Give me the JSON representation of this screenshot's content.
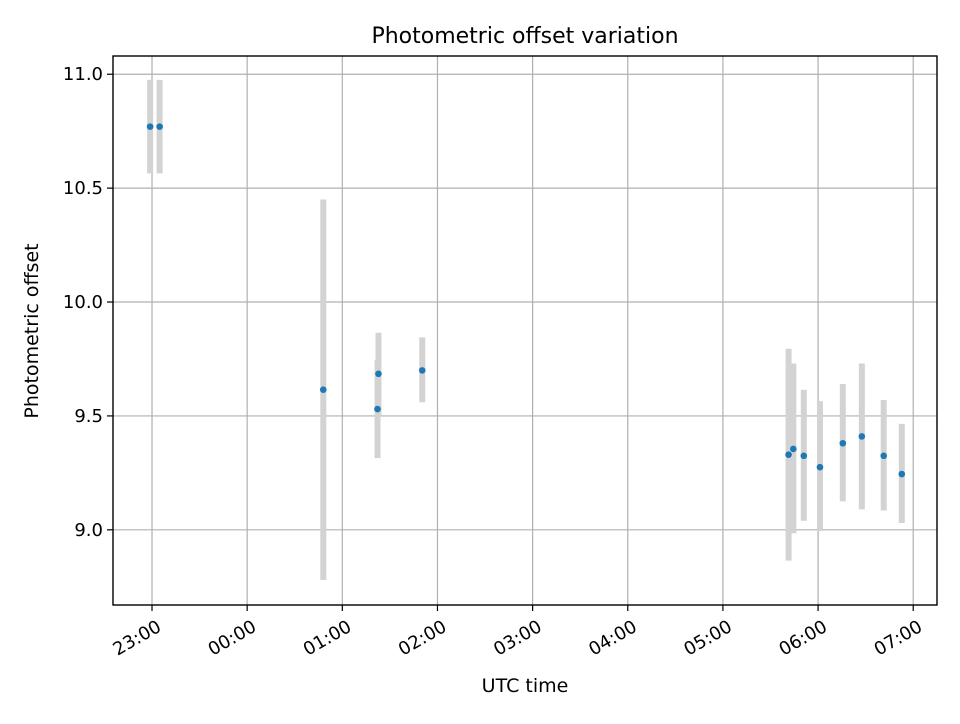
{
  "chart_data": {
    "type": "scatter",
    "title": "Photometric offset variation",
    "xlabel": "UTC time",
    "ylabel": "Photometric offset",
    "x_tick_labels": [
      "23:00",
      "00:00",
      "01:00",
      "02:00",
      "03:00",
      "04:00",
      "05:00",
      "06:00",
      "07:00"
    ],
    "x_tick_values": [
      23.0,
      24.0,
      25.0,
      26.0,
      27.0,
      28.0,
      29.0,
      30.0,
      31.0
    ],
    "xlim": [
      22.59,
      31.25
    ],
    "y_ticks": [
      9.0,
      9.5,
      10.0,
      10.5,
      11.0
    ],
    "y_tick_labels": [
      "9.0",
      "9.5",
      "10.0",
      "10.5",
      "11.0"
    ],
    "ylim": [
      8.67,
      11.08
    ],
    "grid": true,
    "colors": {
      "point": "#1f77b4",
      "errorbar": "#d3d3d3",
      "grid": "#b0b0b0",
      "axes": "#000000"
    },
    "series": [
      {
        "points": [
          {
            "x": 22.98,
            "y": 10.77,
            "ylow": 10.565,
            "yhigh": 10.975
          },
          {
            "x": 23.08,
            "y": 10.77,
            "ylow": 10.565,
            "yhigh": 10.975
          },
          {
            "x": 24.8,
            "y": 9.615,
            "ylow": 8.78,
            "yhigh": 10.45
          },
          {
            "x": 25.38,
            "y": 9.685,
            "ylow": 9.505,
            "yhigh": 9.865
          },
          {
            "x": 25.37,
            "y": 9.53,
            "ylow": 9.315,
            "yhigh": 9.745
          },
          {
            "x": 25.84,
            "y": 9.7,
            "ylow": 9.56,
            "yhigh": 9.845
          },
          {
            "x": 29.69,
            "y": 9.33,
            "ylow": 8.865,
            "yhigh": 9.795
          },
          {
            "x": 29.74,
            "y": 9.355,
            "ylow": 8.985,
            "yhigh": 9.73
          },
          {
            "x": 29.85,
            "y": 9.325,
            "ylow": 9.04,
            "yhigh": 9.615
          },
          {
            "x": 30.02,
            "y": 9.275,
            "ylow": 8.995,
            "yhigh": 9.565
          },
          {
            "x": 30.26,
            "y": 9.38,
            "ylow": 9.125,
            "yhigh": 9.64
          },
          {
            "x": 30.46,
            "y": 9.41,
            "ylow": 9.09,
            "yhigh": 9.73
          },
          {
            "x": 30.69,
            "y": 9.325,
            "ylow": 9.085,
            "yhigh": 9.57
          },
          {
            "x": 30.88,
            "y": 9.245,
            "ylow": 9.03,
            "yhigh": 9.465
          }
        ]
      }
    ]
  }
}
